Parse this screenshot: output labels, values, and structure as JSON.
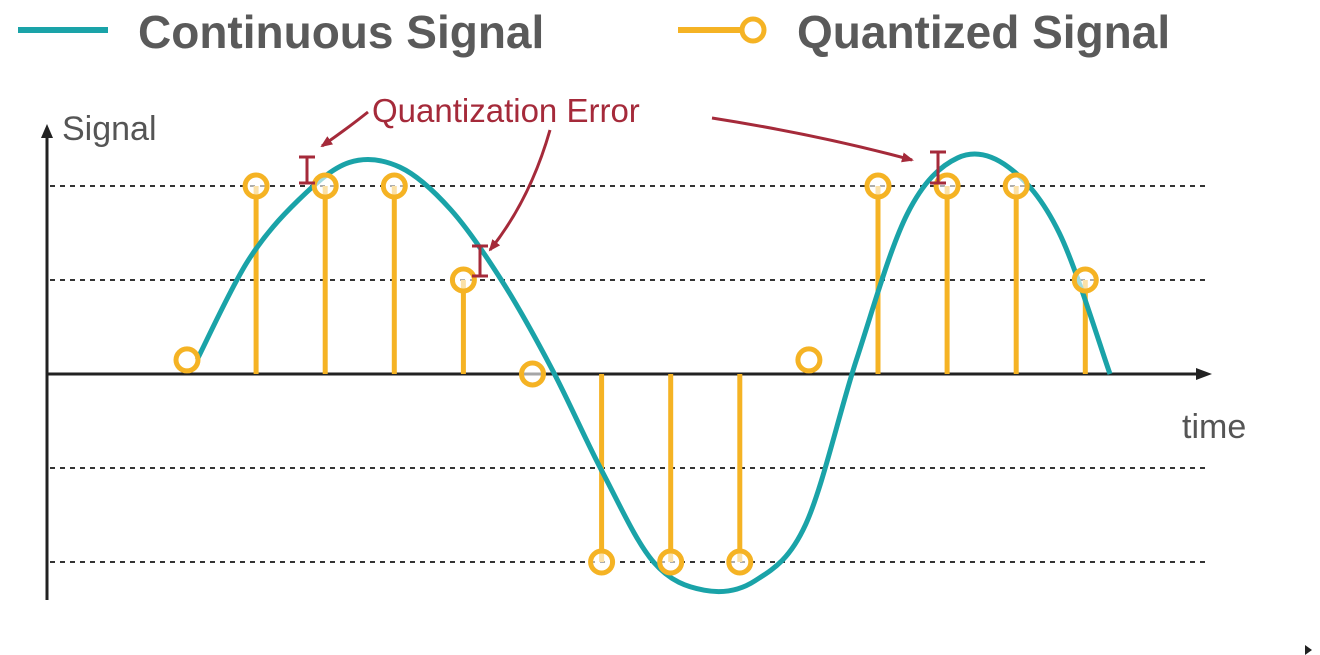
{
  "legend": {
    "continuous_label": "Continuous Signal",
    "quantized_label": "Quantized Signal"
  },
  "axes": {
    "y_label": "Signal",
    "x_label": "time"
  },
  "annotation": {
    "label": "Quantization Error"
  },
  "colors": {
    "continuous": "#1aa3a8",
    "quantized": "#f5b324",
    "annotation": "#a52a3a",
    "axis": "#222222",
    "text": "#5a5a5a"
  },
  "chart_data": {
    "type": "line",
    "y_levels": [
      -2,
      -1,
      0,
      1,
      2
    ],
    "continuous_signal": [
      {
        "t": 0.0,
        "v": 0.15
      },
      {
        "t": 0.5,
        "v": 1.2
      },
      {
        "t": 1.0,
        "v": 1.85
      },
      {
        "t": 1.5,
        "v": 2.25
      },
      {
        "t": 2.0,
        "v": 2.2
      },
      {
        "t": 2.5,
        "v": 1.75
      },
      {
        "t": 3.0,
        "v": 1.0
      },
      {
        "t": 3.5,
        "v": 0.05
      },
      {
        "t": 4.0,
        "v": -1.05
      },
      {
        "t": 4.5,
        "v": -2.0
      },
      {
        "t": 5.0,
        "v": -2.3
      },
      {
        "t": 5.5,
        "v": -2.2
      },
      {
        "t": 6.0,
        "v": -1.6
      },
      {
        "t": 6.5,
        "v": 0.15
      },
      {
        "t": 7.0,
        "v": 1.7
      },
      {
        "t": 7.5,
        "v": 2.3
      },
      {
        "t": 8.0,
        "v": 2.2
      },
      {
        "t": 8.5,
        "v": 1.5
      },
      {
        "t": 9.0,
        "v": 0.0
      }
    ],
    "quantized_samples": [
      {
        "t": 0,
        "v": 0.15
      },
      {
        "t": 1,
        "v": 2
      },
      {
        "t": 2,
        "v": 2
      },
      {
        "t": 3,
        "v": 2
      },
      {
        "t": 4,
        "v": 1
      },
      {
        "t": 5,
        "v": 0
      },
      {
        "t": 6,
        "v": -2
      },
      {
        "t": 7,
        "v": -2
      },
      {
        "t": 8,
        "v": -2
      },
      {
        "t": 9,
        "v": 0.15
      },
      {
        "t": 10,
        "v": 2
      },
      {
        "t": 11,
        "v": 2
      },
      {
        "t": 12,
        "v": 2
      },
      {
        "t": 13,
        "v": 1
      }
    ]
  }
}
